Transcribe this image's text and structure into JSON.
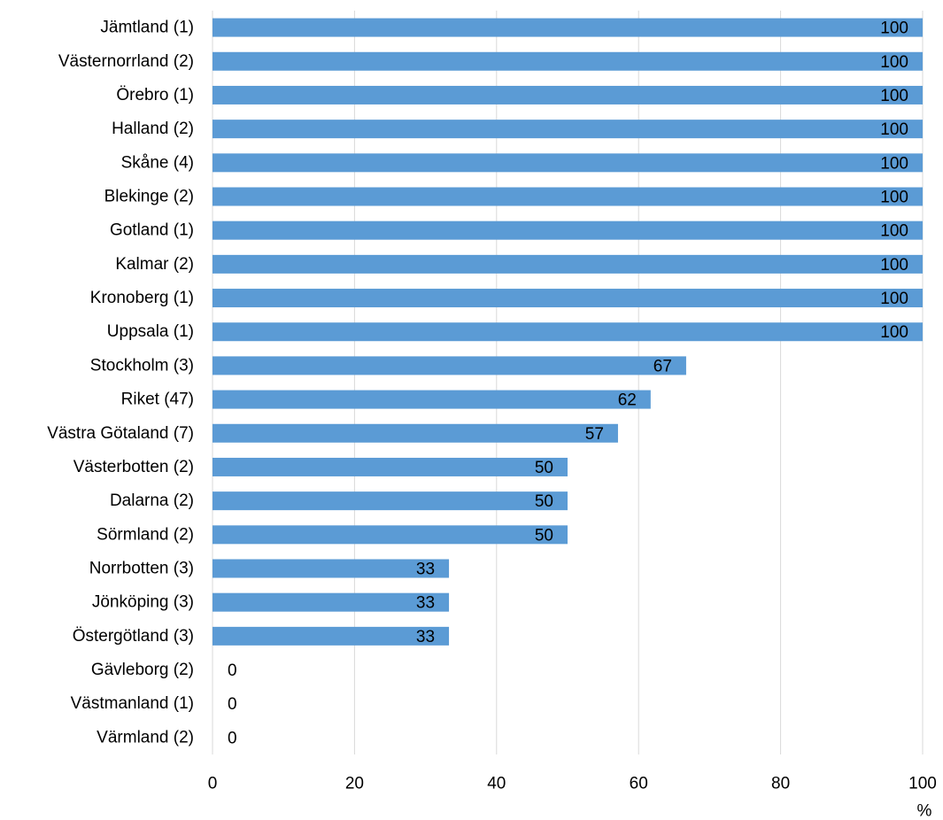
{
  "chart_data": {
    "type": "bar",
    "orientation": "horizontal",
    "categories": [
      "Jämtland (1)",
      "Västernorrland (2)",
      "Örebro (1)",
      "Halland (2)",
      "Skåne (4)",
      "Blekinge (2)",
      "Gotland (1)",
      "Kalmar (2)",
      "Kronoberg (1)",
      "Uppsala (1)",
      "Stockholm (3)",
      "Riket (47)",
      "Västra Götaland (7)",
      "Västerbotten (2)",
      "Dalarna (2)",
      "Sörmland (2)",
      "Norrbotten (3)",
      "Jönköping (3)",
      "Östergötland (3)",
      "Gävleborg (2)",
      "Västmanland (1)",
      "Värmland (2)"
    ],
    "values": [
      100,
      100,
      100,
      100,
      100,
      100,
      100,
      100,
      100,
      100,
      66.7,
      61.7,
      57.1,
      50,
      50,
      50,
      33.3,
      33.3,
      33.3,
      0,
      0,
      0
    ],
    "data_labels": [
      "100",
      "100",
      "100",
      "100",
      "100",
      "100",
      "100",
      "100",
      "100",
      "100",
      "67",
      "62",
      "57",
      "50",
      "50",
      "50",
      "33",
      "33",
      "33",
      "0",
      "0",
      "0"
    ],
    "xlim": [
      0,
      100
    ],
    "xticks": [
      "0",
      "20",
      "40",
      "60",
      "80",
      "100"
    ],
    "xunit": "%",
    "grid": "vertical",
    "bar_color": "#5b9bd5",
    "grid_color": "#d9d9d9"
  }
}
